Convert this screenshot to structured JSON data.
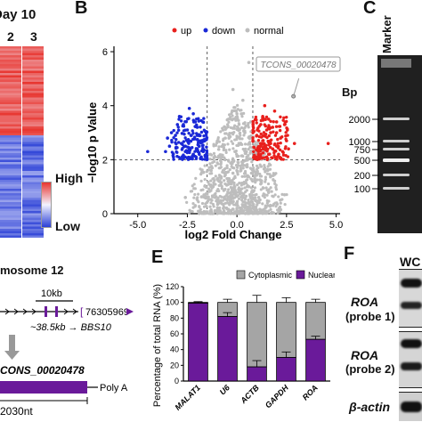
{
  "panels": {
    "b": "B",
    "c": "C",
    "e": "E",
    "f": "F"
  },
  "heatmap": {
    "day_label": "Day 10",
    "columns": [
      "2",
      "3"
    ],
    "legend_high": "High",
    "legend_low": "Low",
    "colors": {
      "high": "#e8352f",
      "low": "#2a3fd6",
      "mid": "#f3f3ff"
    }
  },
  "chart_data": [
    {
      "type": "scatter",
      "panel": "B",
      "xlabel": "log2 Fold Change",
      "ylabel": "−log10 p Value",
      "xlim": [
        -6.2,
        5.2
      ],
      "ylim": [
        0,
        6.2
      ],
      "xticks": [
        "-5.0",
        "-2.5",
        "0.0",
        "2.5",
        "5.0"
      ],
      "yticks": [
        "0",
        "2",
        "4",
        "6"
      ],
      "thresholds": {
        "fc": [
          -1.5,
          0.8
        ],
        "p": 2
      },
      "legend": [
        "up",
        "down",
        "normal"
      ],
      "legend_placement": "top",
      "colors": {
        "up": "#e8201d",
        "down": "#1a28d6",
        "normal": "#bdbdbd"
      },
      "annotation": {
        "label": "TCONS_00020478",
        "x": 2.85,
        "y": 4.35
      },
      "series": [
        {
          "name": "up",
          "points": [
            [
              1.2,
              2.6
            ],
            [
              1.5,
              3.1
            ],
            [
              1.8,
              2.4
            ],
            [
              2.0,
              3.4
            ],
            [
              1.3,
              3.6
            ],
            [
              1.6,
              2.2
            ],
            [
              2.2,
              2.8
            ],
            [
              1.9,
              3.8
            ],
            [
              1.1,
              2.3
            ],
            [
              2.5,
              2.7
            ],
            [
              1.4,
              4.0
            ],
            [
              2.1,
              2.2
            ],
            [
              1.7,
              3.0
            ],
            [
              2.4,
              3.3
            ],
            [
              1.0,
              2.9
            ],
            [
              1.2,
              3.3
            ],
            [
              2.0,
              2.5
            ],
            [
              1.5,
              2.1
            ],
            [
              2.3,
              2.3
            ],
            [
              1.8,
              3.2
            ],
            [
              1.3,
              2.7
            ],
            [
              2.6,
              2.4
            ],
            [
              1.6,
              3.5
            ],
            [
              2.9,
              2.6
            ],
            [
              1.1,
              2.1
            ],
            [
              4.6,
              2.6
            ],
            [
              1.4,
              2.5
            ],
            [
              2.0,
              3.0
            ],
            [
              1.7,
              2.6
            ],
            [
              1.2,
              2.2
            ]
          ]
        },
        {
          "name": "down",
          "points": [
            [
              -2.0,
              2.4
            ],
            [
              -2.3,
              2.9
            ],
            [
              -2.6,
              2.3
            ],
            [
              -3.0,
              3.3
            ],
            [
              -2.1,
              3.4
            ],
            [
              -2.8,
              2.6
            ],
            [
              -1.9,
              2.2
            ],
            [
              -3.4,
              2.5
            ],
            [
              -2.5,
              3.1
            ],
            [
              -3.2,
              2.1
            ],
            [
              -2.2,
              3.7
            ],
            [
              -1.8,
              2.7
            ],
            [
              -2.7,
              2.1
            ],
            [
              -3.1,
              2.9
            ],
            [
              -2.4,
              2.4
            ],
            [
              -2.9,
              3.6
            ],
            [
              -3.6,
              2.3
            ],
            [
              -2.0,
              2.9
            ],
            [
              -1.7,
              2.3
            ],
            [
              -2.5,
              2.7
            ],
            [
              -3.3,
              3.0
            ],
            [
              -2.2,
              2.2
            ],
            [
              -2.7,
              3.3
            ],
            [
              -2.0,
              3.2
            ],
            [
              -1.9,
              2.5
            ],
            [
              -4.5,
              2.3
            ],
            [
              -3.5,
              2.8
            ],
            [
              -2.4,
              3.9
            ],
            [
              -1.8,
              2.1
            ],
            [
              -2.6,
              2.5
            ]
          ]
        },
        {
          "name": "normal",
          "points": [
            [
              0.0,
              0.2
            ],
            [
              0.3,
              0.6
            ],
            [
              -0.3,
              0.5
            ],
            [
              0.6,
              1.0
            ],
            [
              -0.6,
              0.9
            ],
            [
              0.9,
              1.3
            ],
            [
              -0.9,
              1.2
            ],
            [
              0.2,
              1.6
            ],
            [
              -0.2,
              1.5
            ],
            [
              0.5,
              1.8
            ],
            [
              -0.5,
              1.7
            ],
            [
              0.1,
              2.6
            ],
            [
              -0.1,
              2.3
            ],
            [
              0.4,
              3.0
            ],
            [
              -0.4,
              2.8
            ],
            [
              0.7,
              3.4
            ],
            [
              -0.7,
              3.1
            ],
            [
              0.0,
              3.7
            ],
            [
              1.2,
              1.1
            ],
            [
              -1.2,
              1.0
            ],
            [
              1.6,
              0.8
            ],
            [
              -1.6,
              0.7
            ],
            [
              2.0,
              0.4
            ],
            [
              -2.1,
              0.3
            ],
            [
              0.8,
              0.3
            ],
            [
              -0.8,
              0.4
            ],
            [
              0.3,
              4.2
            ],
            [
              -0.2,
              4.6
            ],
            [
              0.6,
              5.6
            ],
            [
              1.1,
              0.6
            ],
            [
              -1.1,
              0.6
            ],
            [
              0.2,
              0.9
            ],
            [
              -0.3,
              1.1
            ],
            [
              0.5,
              2.1
            ],
            [
              -0.6,
              2.0
            ],
            [
              2.4,
              0.7
            ],
            [
              -2.6,
              0.6
            ],
            [
              1.4,
              1.7
            ],
            [
              -1.3,
              1.6
            ]
          ]
        }
      ]
    },
    {
      "type": "bar",
      "panel": "E",
      "ylabel": "Percentage of total RNA (%)",
      "ylim": [
        0,
        120
      ],
      "yticks": [
        "0",
        "20",
        "40",
        "60",
        "80",
        "100",
        "120"
      ],
      "categories": [
        "MALAT1",
        "U6",
        "ACTB",
        "GAPDH",
        "ROA"
      ],
      "legend": [
        "Cytoplasmic",
        "Nuclear"
      ],
      "series": [
        {
          "name": "Nuclear",
          "values": [
            99,
            82,
            18,
            30,
            53
          ],
          "err": [
            1,
            5,
            8,
            7,
            4
          ]
        },
        {
          "name": "Cytoplasmic",
          "values": [
            1,
            18,
            82,
            70,
            47
          ],
          "err": [
            1,
            4,
            9,
            6,
            4
          ]
        }
      ],
      "colors": {
        "Nuclear": "#6a1a9a",
        "Cytoplasmic": "#a5a5a5"
      }
    }
  ],
  "gel": {
    "lane_label": "Marker",
    "bp_label": "Bp",
    "ladder": [
      "2000",
      "1000",
      "750",
      "500",
      "200",
      "100"
    ]
  },
  "gene": {
    "chrom_label": "mosome 12",
    "scale_label": "10kb",
    "coord_label": "76305969",
    "distance_label": "~38.5kb → BBS10",
    "transcript_label": "CONS_00020478",
    "polya_label": "Poly A",
    "length_label": "2030nt"
  },
  "blot": {
    "header": "WC",
    "rows": [
      {
        "gene": "ROA",
        "probe": "(probe 1)"
      },
      {
        "gene": "ROA",
        "probe": "(probe 2)"
      },
      {
        "gene": "β-actin",
        "probe": ""
      }
    ]
  }
}
